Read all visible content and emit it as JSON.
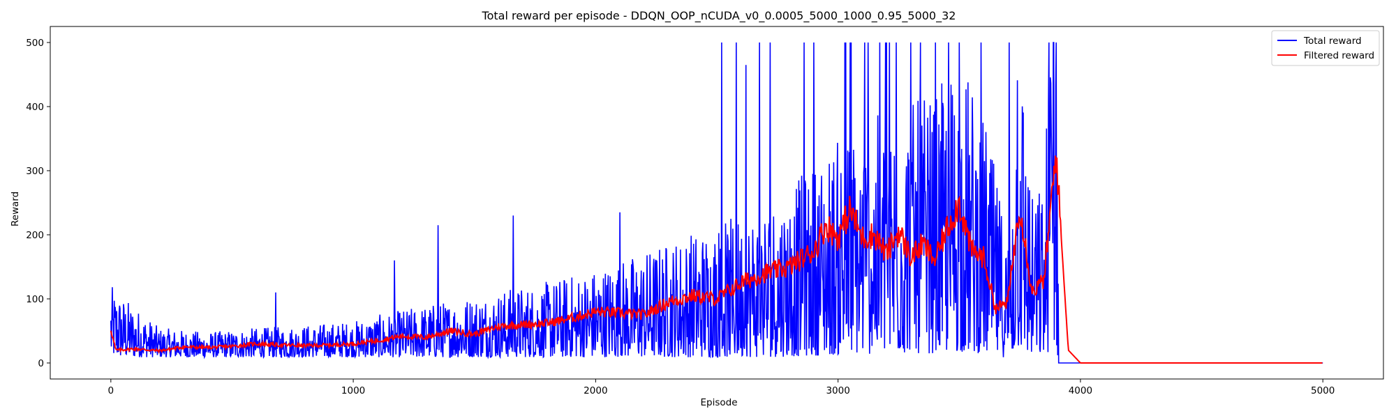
{
  "chart_data": {
    "type": "line",
    "title": "Total reward per episode - DDQN_OOP_nCUDA_v0_0.0005_5000_1000_0.95_5000_32",
    "xlabel": "Episode",
    "ylabel": "Reward",
    "xlim": [
      -250,
      5250
    ],
    "ylim": [
      -25,
      525
    ],
    "xticks": [
      0,
      1000,
      2000,
      3000,
      4000,
      5000
    ],
    "yticks": [
      0,
      100,
      200,
      300,
      400,
      500
    ],
    "grid": false,
    "legend": "top-right",
    "series": [
      {
        "name": "Total reward",
        "color": "#0000ff",
        "x": [
          0,
          200,
          400,
          600,
          800,
          1000,
          1200,
          1400,
          1600,
          1800,
          2000,
          2200,
          2400,
          2600,
          2800,
          3000,
          3200,
          3400,
          3500,
          3600,
          3700,
          3750,
          3800,
          3850,
          3880,
          3900,
          3910,
          3920,
          4000,
          5000
        ],
        "y": [
          55,
          25,
          22,
          25,
          27,
          30,
          38,
          45,
          52,
          58,
          68,
          80,
          95,
          105,
          125,
          160,
          180,
          190,
          220,
          180,
          90,
          240,
          120,
          130,
          270,
          300,
          0,
          0,
          0,
          0
        ],
        "peaks": [
          [
            203,
            88
          ],
          [
            680,
            110
          ],
          [
            1170,
            160
          ],
          [
            1350,
            215
          ],
          [
            1660,
            230
          ],
          [
            2100,
            235
          ],
          [
            2580,
            500
          ],
          [
            2620,
            465
          ],
          [
            2860,
            500
          ],
          [
            2900,
            500
          ],
          [
            3050,
            500
          ],
          [
            3200,
            500
          ],
          [
            3300,
            500
          ],
          [
            3500,
            500
          ],
          [
            3740,
            441
          ],
          [
            3870,
            500
          ],
          [
            3890,
            500
          ],
          [
            3900,
            500
          ]
        ]
      },
      {
        "name": "Filtered reward",
        "color": "#ff0000",
        "x": [
          0,
          20,
          100,
          200,
          300,
          400,
          500,
          600,
          700,
          800,
          900,
          1000,
          1100,
          1200,
          1300,
          1400,
          1500,
          1600,
          1700,
          1800,
          1900,
          2000,
          2100,
          2200,
          2300,
          2400,
          2500,
          2600,
          2700,
          2800,
          2900,
          2950,
          3000,
          3050,
          3100,
          3150,
          3200,
          3250,
          3300,
          3350,
          3400,
          3450,
          3500,
          3550,
          3600,
          3650,
          3700,
          3750,
          3800,
          3850,
          3880,
          3900,
          3920,
          3950,
          4000,
          5000
        ],
        "y": [
          53,
          20,
          22,
          19,
          25,
          24,
          26,
          30,
          28,
          27,
          28,
          30,
          35,
          42,
          40,
          50,
          45,
          57,
          60,
          62,
          70,
          80,
          78,
          75,
          95,
          105,
          100,
          125,
          140,
          150,
          175,
          215,
          195,
          240,
          195,
          200,
          170,
          205,
          165,
          185,
          160,
          210,
          250,
          175,
          165,
          85,
          95,
          250,
          110,
          130,
          250,
          330,
          200,
          20,
          0,
          0
        ]
      }
    ]
  }
}
